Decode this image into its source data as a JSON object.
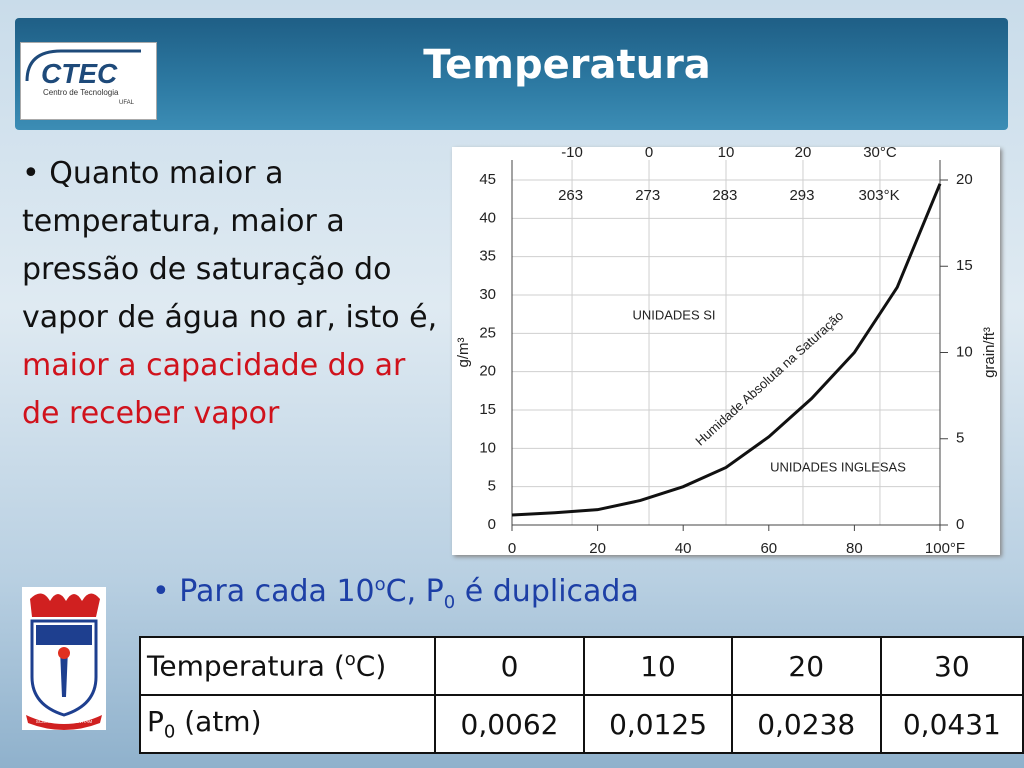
{
  "header": {
    "title": "Temperatura",
    "logo": {
      "name": "CTEC",
      "subtitle": "Centro de Tecnologia",
      "org": "UFAL"
    }
  },
  "bullets": [
    {
      "text": "Quanto maior a temperatura, maior a pressão de saturação do vapor de água no ar, isto é, ",
      "highlight": "maior a capacidade do ar de receber vapor"
    },
    {
      "parts": [
        "Para cada 10",
        "o",
        "C, P",
        "0",
        " é duplicada"
      ]
    }
  ],
  "chart_data": {
    "type": "line",
    "ylabel": "g/m³",
    "y2label": "grain/ft³",
    "annotations": [
      "UNIDADES SI",
      "UNIDADES INGLESAS",
      "Humidade Absoluta na Saturação"
    ],
    "x": [
      0,
      10,
      20,
      30,
      40,
      50,
      60,
      70,
      80,
      90,
      100
    ],
    "values": [
      1.3,
      1.6,
      2.0,
      3.2,
      5.0,
      7.5,
      11.5,
      16.5,
      22.5,
      31,
      44.5
    ],
    "color": "#111111",
    "xlim": [
      0,
      100
    ],
    "xticks": [
      0,
      20,
      40,
      60,
      80,
      {
        "value": 100,
        "label": "100°F"
      }
    ],
    "ylim": [
      0,
      45
    ],
    "yticks": [
      0,
      5,
      10,
      15,
      20,
      25,
      30,
      35,
      40,
      45
    ],
    "y2lim": [
      0,
      20
    ],
    "y2ticks": [
      0,
      5,
      10,
      15,
      20
    ],
    "x2lim": [
      -17.8,
      37.8
    ],
    "x2ticks": [
      -10,
      0,
      10,
      20,
      {
        "value": 30,
        "label": "30°C"
      }
    ],
    "x3lim": [
      255.4,
      310.9
    ],
    "x3ticks": [
      263,
      273,
      283,
      293,
      {
        "value": 303,
        "label": "303°K"
      }
    ],
    "grid": true
  },
  "table": {
    "rows": [
      {
        "label": [
          "Temperatura (",
          "o",
          "C)"
        ],
        "cells": [
          0,
          10,
          20,
          30
        ]
      },
      {
        "label": [
          "P",
          "0",
          " (atm)"
        ],
        "cells": [
          "0,0062",
          "0,0125",
          "0,0238",
          "0,0431"
        ]
      }
    ]
  },
  "emblem": {
    "motto": "SCIENTIA AD SAPIENTIAM"
  }
}
